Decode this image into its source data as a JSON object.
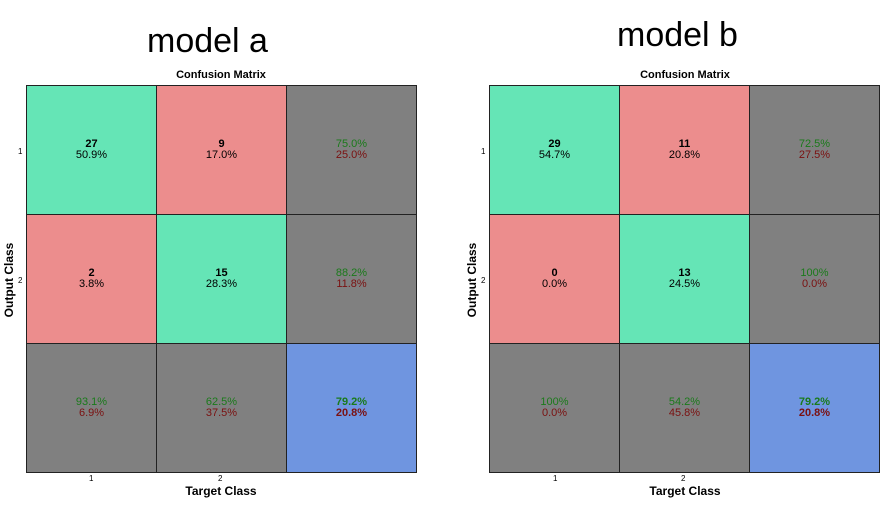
{
  "colors": {
    "correct_cell": "#65e5b6",
    "incorrect_cell": "#ec8d8d",
    "summary_cell": "#808080",
    "overall_cell": "#6f95e0",
    "good_text": "#1a7a1a",
    "bad_text": "#7a1010"
  },
  "chart_data": [
    {
      "type": "heatmap",
      "panel_title": "model a",
      "title": "Confusion Matrix",
      "xlabel": "Target Class",
      "ylabel": "Output Class",
      "x_ticks": [
        "1",
        "2"
      ],
      "y_ticks": [
        "1",
        "2"
      ],
      "cells": [
        [
          {
            "line1": "27",
            "line2": "50.9%",
            "kind": "correct"
          },
          {
            "line1": "9",
            "line2": "17.0%",
            "kind": "incorrect"
          },
          {
            "line1": "75.0%",
            "line2": "25.0%",
            "kind": "summary"
          }
        ],
        [
          {
            "line1": "2",
            "line2": "3.8%",
            "kind": "incorrect"
          },
          {
            "line1": "15",
            "line2": "28.3%",
            "kind": "correct"
          },
          {
            "line1": "88.2%",
            "line2": "11.8%",
            "kind": "summary"
          }
        ],
        [
          {
            "line1": "93.1%",
            "line2": "6.9%",
            "kind": "summary"
          },
          {
            "line1": "62.5%",
            "line2": "37.5%",
            "kind": "summary"
          },
          {
            "line1": "79.2%",
            "line2": "20.8%",
            "kind": "overall"
          }
        ]
      ]
    },
    {
      "type": "heatmap",
      "panel_title": "model b",
      "title": "Confusion Matrix",
      "xlabel": "Target Class",
      "ylabel": "Output Class",
      "x_ticks": [
        "1",
        "2"
      ],
      "y_ticks": [
        "1",
        "2"
      ],
      "cells": [
        [
          {
            "line1": "29",
            "line2": "54.7%",
            "kind": "correct"
          },
          {
            "line1": "11",
            "line2": "20.8%",
            "kind": "incorrect"
          },
          {
            "line1": "72.5%",
            "line2": "27.5%",
            "kind": "summary"
          }
        ],
        [
          {
            "line1": "0",
            "line2": "0.0%",
            "kind": "incorrect"
          },
          {
            "line1": "13",
            "line2": "24.5%",
            "kind": "correct"
          },
          {
            "line1": "100%",
            "line2": "0.0%",
            "kind": "summary"
          }
        ],
        [
          {
            "line1": "100%",
            "line2": "0.0%",
            "kind": "summary"
          },
          {
            "line1": "54.2%",
            "line2": "45.8%",
            "kind": "summary"
          },
          {
            "line1": "79.2%",
            "line2": "20.8%",
            "kind": "overall"
          }
        ]
      ]
    }
  ]
}
